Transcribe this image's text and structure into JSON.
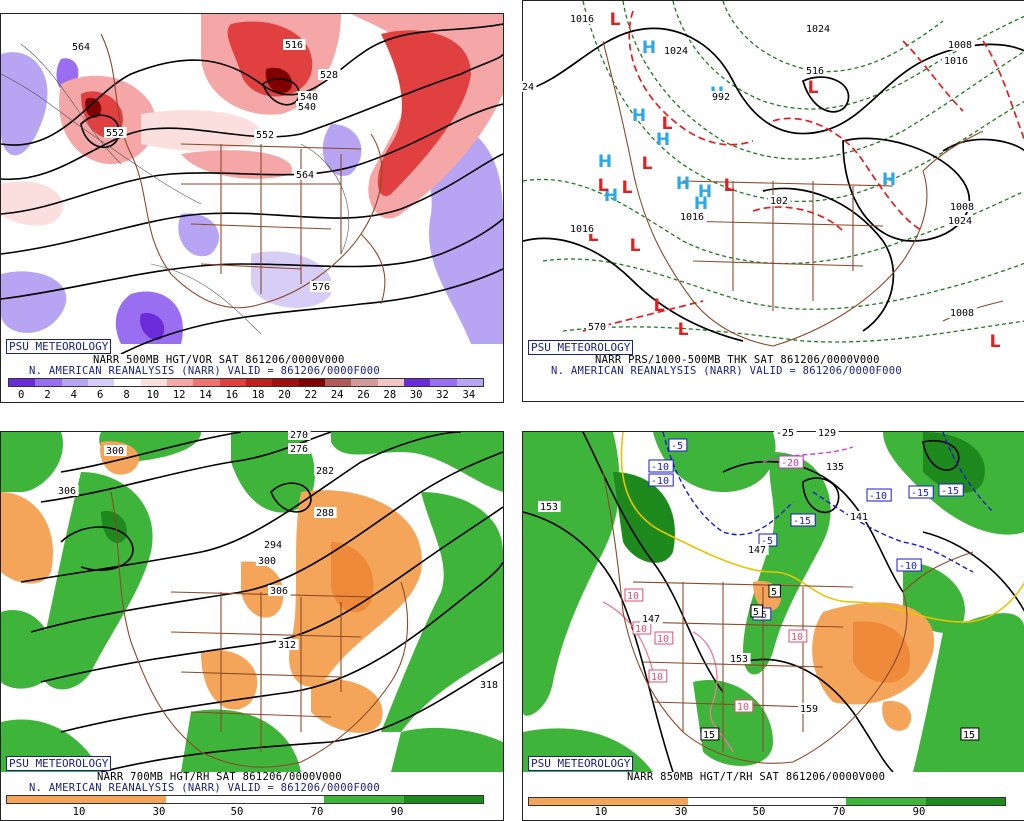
{
  "colors": {
    "vort": [
      "#6a2bd8",
      "#9a6ef0",
      "#b7a4f2",
      "#d7cef7",
      "#ffffff",
      "#fbdede",
      "#f5a6a6",
      "#ee7373",
      "#e04040",
      "#c21f1f",
      "#a01010",
      "#800000",
      "#b05a5a",
      "#d49a9a",
      "#f2c4c4"
    ],
    "rh_dry": "#f4a55a",
    "rh_moist": "#3fb43a",
    "rh_wet": "#1e8a1e",
    "brown": "#8b4a2a",
    "low": "#e02020",
    "high": "#2aa8e8"
  },
  "panels": [
    {
      "id": "vort",
      "badge": "PSU METEOROLOGY",
      "line1": "NARR 500MB HGT/VOR SAT 861206/0000V000",
      "line2": "N. AMERICAN REANALYSIS (NARR) VALID = 861206/0000F000",
      "legend_ticks": [
        "0",
        "2",
        "4",
        "6",
        "8",
        "10",
        "12",
        "14",
        "16",
        "18",
        "20",
        "22",
        "24",
        "26",
        "28",
        "30",
        "32",
        "34"
      ],
      "contour_labels": [
        "564",
        "552",
        "540",
        "552",
        "564",
        "576",
        "516",
        "528",
        "540"
      ]
    },
    {
      "id": "pres",
      "badge": "PSU METEOROLOGY",
      "line1": "NARR PRS/1000-500MB THK SAT 861206/0000V000",
      "line2": "N. AMERICAN REANALYSIS (NARR) VALID = 861206/0000F000",
      "contour_labels": [
        "1016",
        "1024",
        "1024",
        "1008",
        "1016",
        "992",
        "24",
        "102",
        "1016",
        "1016",
        "1008",
        "1024",
        "570",
        "1008",
        "516"
      ],
      "highs": [
        "H",
        "H",
        "H",
        "H",
        "H",
        "H",
        "H",
        "H",
        "H",
        "H"
      ],
      "lows": [
        "L",
        "L",
        "L",
        "L",
        "L",
        "L",
        "L",
        "L",
        "L",
        "L",
        "L",
        "L"
      ]
    },
    {
      "id": "rh700",
      "badge": "PSU METEOROLOGY",
      "line1": "NARR 700MB HGT/RH SAT 861206/0000V000",
      "line2": "N. AMERICAN REANALYSIS (NARR) VALID = 861206/0000F000",
      "legend_ticks": [
        "10",
        "30",
        "50",
        "70",
        "90"
      ],
      "contour_labels": [
        "270",
        "276",
        "282",
        "288",
        "294",
        "300",
        "306",
        "300",
        "306",
        "312",
        "318"
      ]
    },
    {
      "id": "rh850",
      "badge": "PSU METEOROLOGY",
      "line1": "NARR 850MB HGT/T/RH SAT 861206/0000V000",
      "legend_ticks": [
        "10",
        "30",
        "50",
        "70",
        "90"
      ],
      "contour_labels": [
        "153",
        "147",
        "135",
        "141",
        "153",
        "159",
        "-25",
        "129",
        "147",
        "135"
      ],
      "temp_boxes": [
        "-5",
        "-10",
        "-10",
        "-5",
        "-15",
        "-10",
        "-15",
        "-15",
        "-10",
        "-5",
        "5",
        "5",
        "10",
        "10",
        "10",
        "10",
        "10",
        "15",
        "15",
        "-20",
        "10"
      ]
    }
  ]
}
